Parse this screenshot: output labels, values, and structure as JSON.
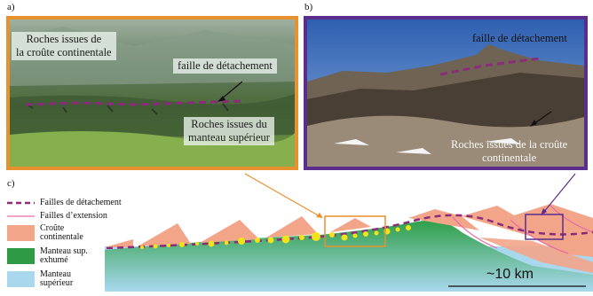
{
  "panels": {
    "a": {
      "letter": "a)",
      "label_top_line1": "Roches issues de",
      "label_top_line2": "la croûte continentale",
      "label_fault": "faille de détachement",
      "label_bottom_line1": "Roches issues du",
      "label_bottom_line2": "manteau supérieur",
      "frame_color": "#e8912f"
    },
    "b": {
      "letter": "b)",
      "label_fault": "faille de détachement",
      "label_bottom_line1": "Roches issues de la croûte",
      "label_bottom_line2": "continentale",
      "frame_color": "#5b2d8c"
    },
    "c": {
      "letter": "c)",
      "legend": [
        {
          "label": "Failles de détachement",
          "type": "dashed-line",
          "color": "#8a2c7a"
        },
        {
          "label": "Failles d’extension",
          "type": "line",
          "color": "#e86aa6"
        },
        {
          "label_line1": "Croûte",
          "label_line2": "continentale",
          "type": "swatch",
          "color": "#f3a58a"
        },
        {
          "label_line1": "Manteau sup.",
          "label_line2": "exhumé",
          "type": "swatch",
          "color": "#2e9a45"
        },
        {
          "label_line1": "Manteau",
          "label_line2": "supérieur",
          "type": "swatch",
          "color": "#a9d8ee"
        }
      ],
      "scale_label": "~10 km",
      "orange_box_color": "#e8912f",
      "purple_box_color": "#5b2d8c"
    }
  }
}
